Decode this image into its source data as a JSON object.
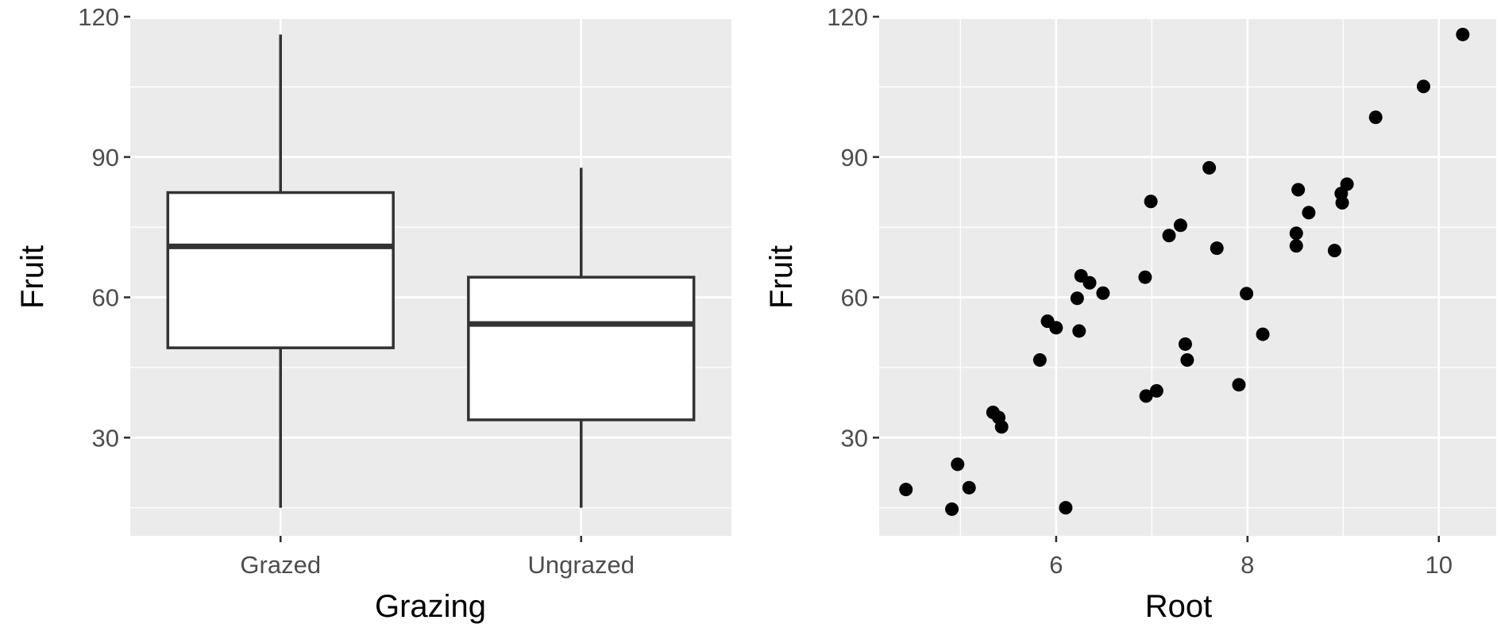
{
  "chart_data": [
    {
      "type": "box",
      "xlabel": "Grazing",
      "ylabel": "Fruit",
      "categories": [
        "Grazed",
        "Ungrazed"
      ],
      "ylim": [
        9,
        119.5
      ],
      "yticks": [
        30,
        60,
        90,
        120
      ],
      "grid": true,
      "boxes": [
        {
          "category": "Grazed",
          "min": 15,
          "q1": 49.2,
          "median": 70.9,
          "q3": 82.4,
          "max": 116.2
        },
        {
          "category": "Ungrazed",
          "min": 15,
          "q1": 33.8,
          "median": 54.3,
          "q3": 64.3,
          "max": 87.7
        }
      ]
    },
    {
      "type": "scatter",
      "xlabel": "Root",
      "ylabel": "Fruit",
      "xlim": [
        4.15,
        10.6
      ],
      "ylim": [
        9,
        119.5
      ],
      "xticks": [
        6,
        8,
        10
      ],
      "yticks": [
        30,
        60,
        90,
        120
      ],
      "grid": true,
      "points": [
        [
          4.43,
          18.9
        ],
        [
          4.91,
          14.7
        ],
        [
          4.97,
          24.3
        ],
        [
          5.09,
          19.3
        ],
        [
          5.34,
          35.4
        ],
        [
          5.4,
          34.3
        ],
        [
          5.43,
          32.3
        ],
        [
          5.83,
          46.6
        ],
        [
          5.91,
          54.9
        ],
        [
          6.0,
          53.5
        ],
        [
          6.1,
          15.0
        ],
        [
          6.22,
          59.8
        ],
        [
          6.24,
          52.8
        ],
        [
          6.26,
          64.6
        ],
        [
          6.35,
          63.1
        ],
        [
          6.49,
          60.9
        ],
        [
          6.93,
          64.3
        ],
        [
          6.94,
          38.9
        ],
        [
          6.99,
          80.5
        ],
        [
          7.05,
          40.0
        ],
        [
          7.18,
          73.2
        ],
        [
          7.3,
          75.4
        ],
        [
          7.35,
          50.0
        ],
        [
          7.37,
          46.6
        ],
        [
          7.6,
          87.7
        ],
        [
          7.68,
          70.5
        ],
        [
          7.91,
          41.3
        ],
        [
          7.99,
          60.8
        ],
        [
          8.16,
          52.1
        ],
        [
          8.51,
          73.7
        ],
        [
          8.51,
          71.0
        ],
        [
          8.53,
          83.0
        ],
        [
          8.64,
          78.1
        ],
        [
          8.91,
          70.0
        ],
        [
          8.98,
          82.2
        ],
        [
          8.99,
          80.2
        ],
        [
          9.04,
          84.2
        ],
        [
          9.34,
          98.5
        ],
        [
          9.84,
          105.1
        ],
        [
          10.25,
          116.2
        ]
      ]
    }
  ]
}
